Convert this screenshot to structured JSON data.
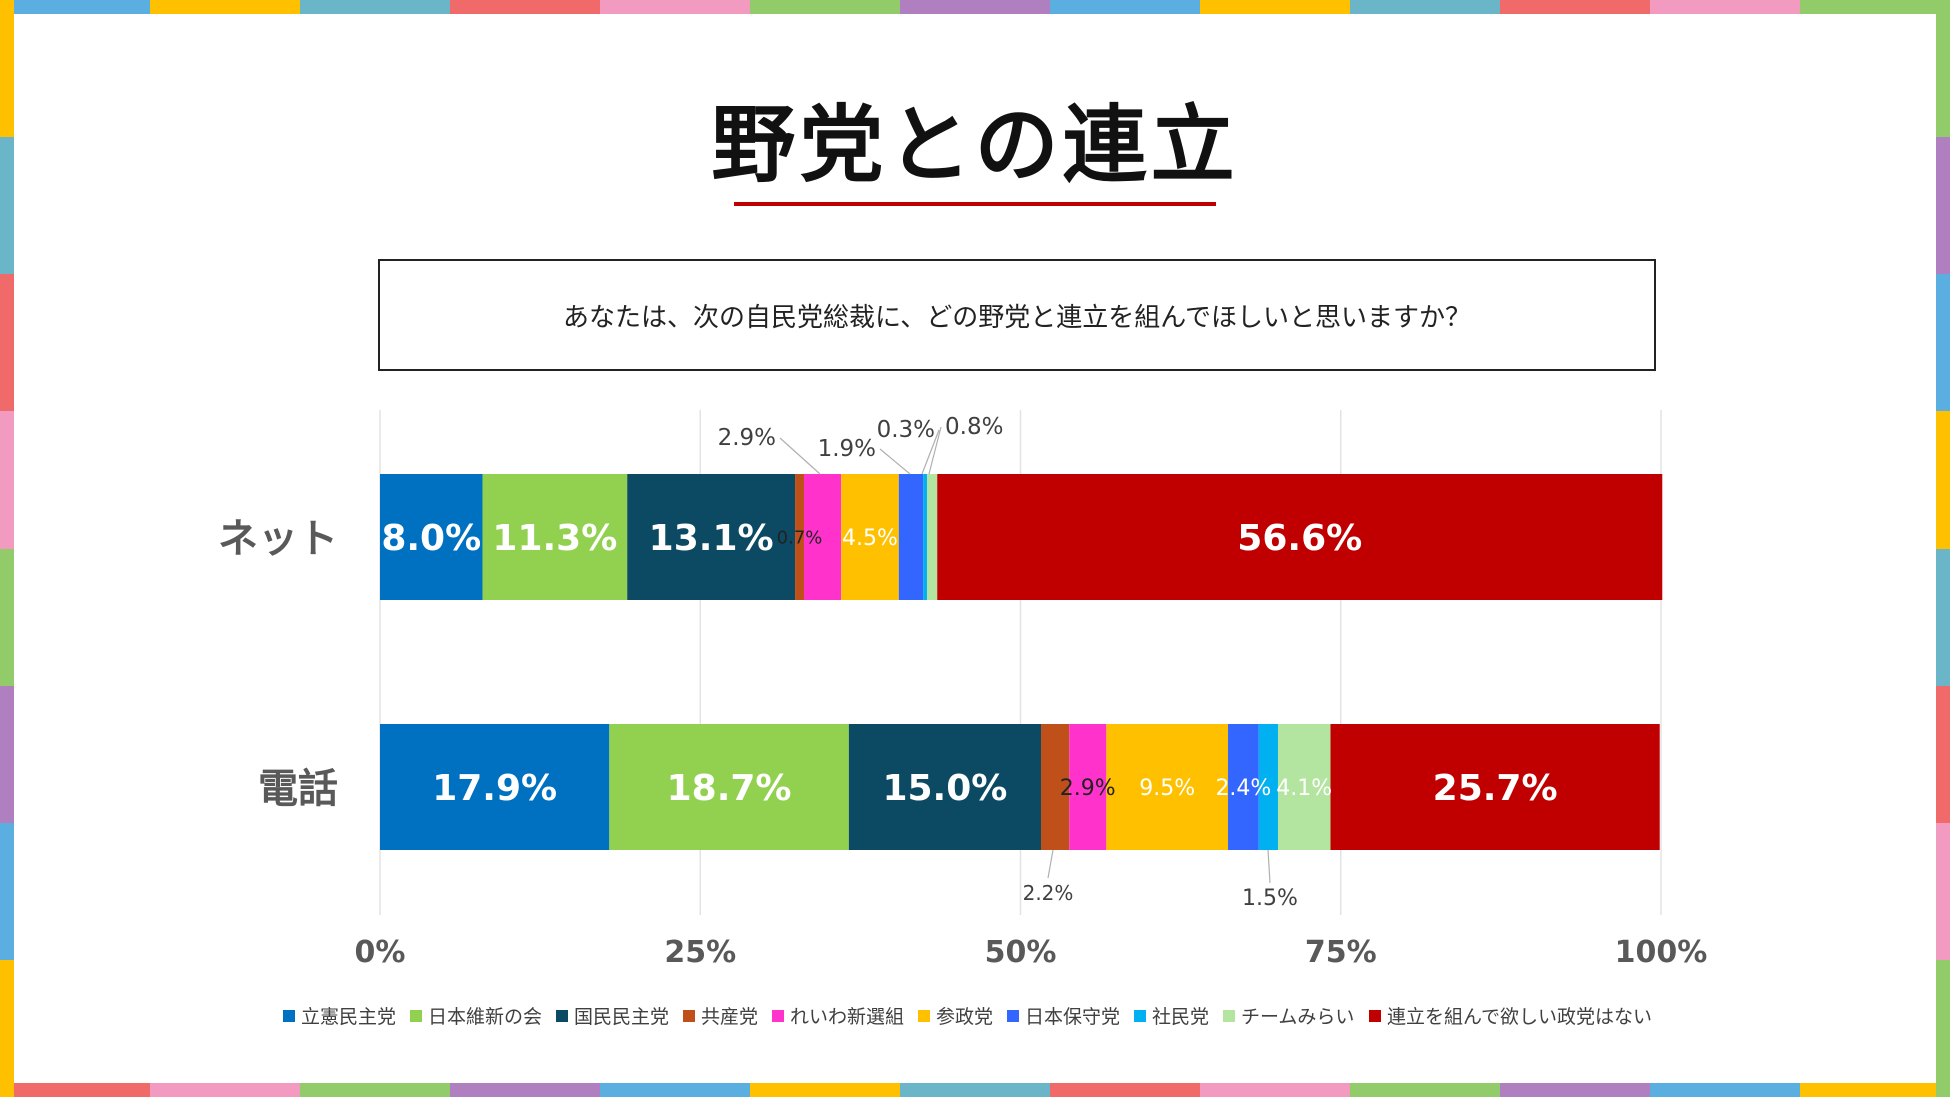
{
  "page": {
    "title": "野党との連立",
    "question": "あなたは、次の自民党総裁に、どの野党と連立を組んでほしいと思いますか？"
  },
  "chart_data": {
    "type": "bar",
    "orientation": "horizontal",
    "stacked": "percent",
    "categories": [
      "ネット",
      "電話"
    ],
    "series": [
      {
        "name": "立憲民主党",
        "color": "#0070c0",
        "values": [
          8.0,
          17.9
        ],
        "labels": [
          "8.0%",
          "17.9%"
        ]
      },
      {
        "name": "日本維新の会",
        "color": "#92d050",
        "values": [
          11.3,
          18.7
        ],
        "labels": [
          "11.3%",
          "18.7%"
        ]
      },
      {
        "name": "国民民主党",
        "color": "#0b4a62",
        "values": [
          13.1,
          15.0
        ],
        "labels": [
          "13.1%",
          "15.0%"
        ]
      },
      {
        "name": "共産党",
        "color": "#c0501a",
        "values": [
          0.7,
          2.2
        ],
        "labels": [
          "0.7%",
          "2.2%"
        ]
      },
      {
        "name": "れいわ新選組",
        "color": "#ff33cc",
        "values": [
          2.9,
          2.9
        ],
        "labels": [
          "2.9%",
          "2.9%"
        ]
      },
      {
        "name": "参政党",
        "color": "#ffc000",
        "values": [
          4.5,
          9.5
        ],
        "labels": [
          "4.5%",
          "9.5%"
        ]
      },
      {
        "name": "日本保守党",
        "color": "#3366ff",
        "values": [
          1.9,
          2.4
        ],
        "labels": [
          "1.9%",
          "2.4%"
        ]
      },
      {
        "name": "社民党",
        "color": "#00b0f0",
        "values": [
          0.3,
          1.5
        ],
        "labels": [
          "0.3%",
          "1.5%"
        ]
      },
      {
        "name": "チームみらい",
        "color": "#b3e5a1",
        "values": [
          0.8,
          4.1
        ],
        "labels": [
          "0.8%",
          "4.1%"
        ]
      },
      {
        "name": "連立を組んで欲しい政党はない",
        "color": "#c00000",
        "values": [
          56.6,
          25.7
        ],
        "labels": [
          "56.6%",
          "25.7%"
        ]
      }
    ],
    "x_ticks": [
      "0%",
      "25%",
      "50%",
      "75%",
      "100%"
    ],
    "xlim": [
      0,
      100
    ],
    "grid": true,
    "legend": "bottom"
  },
  "frame_colors": [
    "#5aaee0",
    "#ffc000",
    "#6bb5c8",
    "#f06a6a",
    "#f29ac0",
    "#92cc6a",
    "#b07fc0"
  ]
}
